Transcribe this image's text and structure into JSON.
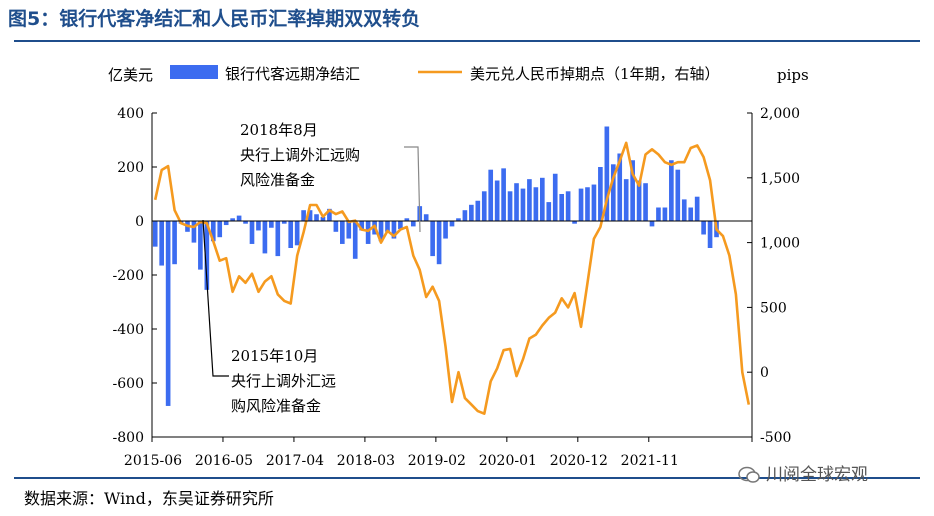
{
  "title": "图5：银行代客净结汇和人民币汇率掉期双双转负",
  "source": "数据来源：Wind，东吴证券研究所",
  "watermark": "川阅全球宏观",
  "colors": {
    "bar": "#3c6cf0",
    "line": "#f59a1f",
    "title": "#1f4e8c"
  },
  "chart_data": {
    "type": "bar+line",
    "left_axis_label": "亿美元",
    "right_axis_label": "pips",
    "left_ylim": [
      -800,
      400
    ],
    "left_ticks": [
      400,
      200,
      0,
      -200,
      -400,
      -600,
      -800
    ],
    "right_ylim": [
      -500,
      2000
    ],
    "right_ticks": [
      2000,
      1500,
      1000,
      500,
      0,
      -500
    ],
    "right_tick_labels": [
      "2,000",
      "1,500",
      "1,000",
      "500",
      "0",
      "-500"
    ],
    "x_tick_labels": [
      "2015-06",
      "2016-05",
      "2017-04",
      "2018-03",
      "2019-02",
      "2020-01",
      "2020-12",
      "2021-11"
    ],
    "x_tick_index": [
      0,
      11,
      22,
      33,
      44,
      55,
      66,
      77
    ],
    "series": [
      {
        "name": "银行代客远期净结汇",
        "type": "bar",
        "axis": "left",
        "values": [
          -95,
          -165,
          -685,
          -160,
          -10,
          -40,
          -80,
          -180,
          -255,
          -75,
          -60,
          -15,
          10,
          20,
          -10,
          -85,
          -35,
          -120,
          -25,
          -130,
          -10,
          -100,
          -90,
          40,
          40,
          25,
          15,
          45,
          -40,
          -85,
          -65,
          -140,
          -35,
          -85,
          -50,
          -75,
          -40,
          -65,
          -30,
          10,
          -20,
          55,
          25,
          -130,
          -160,
          -65,
          -20,
          10,
          40,
          60,
          75,
          110,
          190,
          150,
          195,
          110,
          140,
          120,
          155,
          125,
          160,
          70,
          175,
          100,
          110,
          -10,
          120,
          125,
          135,
          200,
          350,
          210,
          250,
          155,
          225,
          150,
          140,
          -20,
          50,
          50,
          225,
          190,
          80,
          50,
          90,
          -50,
          -100,
          -60
        ],
        "labels": [
          2015.42,
          2015.5,
          2015.58,
          2015.67,
          2015.75,
          2015.83,
          2015.92,
          2016.0,
          2016.08,
          2016.17,
          2016.25,
          2016.33,
          2016.42,
          2016.5,
          2016.58,
          2016.67,
          2016.75,
          2016.83,
          2016.92,
          2017.0,
          2017.08,
          2017.17,
          2017.25,
          2017.33,
          2017.42,
          2017.5,
          2017.58,
          2017.67,
          2017.75,
          2017.83,
          2017.92,
          2018.0,
          2018.08,
          2018.17,
          2018.25,
          2018.33,
          2018.42,
          2018.5,
          2018.58,
          2018.67,
          2018.75,
          2018.83,
          2018.92,
          2019.0,
          2019.08,
          2019.17,
          2019.25,
          2019.33,
          2019.42,
          2019.5,
          2019.58,
          2019.67,
          2019.75,
          2019.83,
          2019.92,
          2020.0,
          2020.08,
          2020.17,
          2020.25,
          2020.33,
          2020.42,
          2020.5,
          2020.58,
          2020.67,
          2020.75,
          2020.83,
          2020.92,
          2021.0,
          2021.08,
          2021.17,
          2021.25,
          2021.33,
          2021.42,
          2021.5,
          2021.58,
          2021.67,
          2021.75,
          2021.83,
          2021.92,
          2022.0,
          2022.08,
          2022.17,
          2022.25,
          2022.33,
          2022.42,
          2022.5,
          2022.58,
          2022.67
        ]
      },
      {
        "name": "美元兑人民币掉期点（1年期，右轴）",
        "type": "line",
        "axis": "right",
        "values": [
          [
            0,
            1330
          ],
          [
            1,
            1560
          ],
          [
            2,
            1590
          ],
          [
            3,
            1250
          ],
          [
            4,
            1150
          ],
          [
            5,
            1130
          ],
          [
            6,
            1120
          ],
          [
            7,
            1160
          ],
          [
            8,
            1150
          ],
          [
            9,
            1010
          ],
          [
            10,
            860
          ],
          [
            11,
            880
          ],
          [
            12,
            620
          ],
          [
            13,
            740
          ],
          [
            14,
            690
          ],
          [
            15,
            760
          ],
          [
            16,
            620
          ],
          [
            17,
            700
          ],
          [
            18,
            740
          ],
          [
            19,
            600
          ],
          [
            20,
            550
          ],
          [
            21,
            530
          ],
          [
            22,
            900
          ],
          [
            23,
            1080
          ],
          [
            24,
            1290
          ],
          [
            25,
            1290
          ],
          [
            26,
            1200
          ],
          [
            27,
            1250
          ],
          [
            28,
            1220
          ],
          [
            29,
            1240
          ],
          [
            30,
            1160
          ],
          [
            31,
            1170
          ],
          [
            32,
            1100
          ],
          [
            33,
            1090
          ],
          [
            34,
            1130
          ],
          [
            35,
            1000
          ],
          [
            36,
            1090
          ],
          [
            37,
            1050
          ],
          [
            38,
            1100
          ],
          [
            39,
            1120
          ],
          [
            40,
            900
          ],
          [
            41,
            790
          ],
          [
            42,
            580
          ],
          [
            43,
            660
          ],
          [
            44,
            550
          ],
          [
            45,
            200
          ],
          [
            46,
            -230
          ],
          [
            47,
            0
          ],
          [
            48,
            -200
          ],
          [
            49,
            -250
          ],
          [
            50,
            -300
          ],
          [
            51,
            -320
          ],
          [
            52,
            -70
          ],
          [
            53,
            30
          ],
          [
            54,
            170
          ],
          [
            55,
            180
          ],
          [
            56,
            -30
          ],
          [
            57,
            100
          ],
          [
            58,
            260
          ],
          [
            59,
            290
          ],
          [
            60,
            360
          ],
          [
            61,
            420
          ],
          [
            62,
            460
          ],
          [
            63,
            570
          ],
          [
            64,
            500
          ],
          [
            65,
            610
          ],
          [
            66,
            350
          ],
          [
            67,
            690
          ],
          [
            68,
            1030
          ],
          [
            69,
            1120
          ],
          [
            70,
            1330
          ],
          [
            71,
            1500
          ],
          [
            72,
            1630
          ],
          [
            73,
            1770
          ],
          [
            74,
            1530
          ],
          [
            75,
            1440
          ],
          [
            76,
            1680
          ],
          [
            77,
            1720
          ],
          [
            78,
            1680
          ],
          [
            79,
            1620
          ],
          [
            80,
            1600
          ],
          [
            81,
            1620
          ],
          [
            82,
            1620
          ],
          [
            83,
            1730
          ],
          [
            84,
            1750
          ],
          [
            85,
            1660
          ],
          [
            86,
            1480
          ],
          [
            87,
            1100
          ],
          [
            88,
            1050
          ],
          [
            89,
            900
          ],
          [
            90,
            600
          ],
          [
            91,
            0
          ],
          [
            92,
            -250
          ]
        ]
      }
    ],
    "annotations": [
      {
        "lines": [
          "2018年8月",
          "央行上调外汇远购",
          "风险准备金"
        ],
        "x_index": 38
      },
      {
        "lines": [
          "2015年10月",
          "央行上调外汇远",
          "购风险准备金"
        ],
        "x_index": 4
      }
    ]
  }
}
